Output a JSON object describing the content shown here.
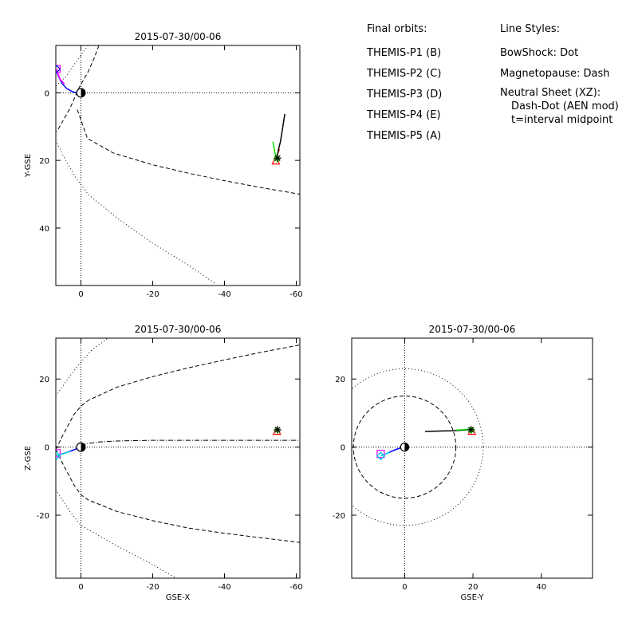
{
  "legend": {
    "orbits_heading": "Final orbits:",
    "orbits": [
      {
        "label": "THEMIS-P1 (B)",
        "color": "#ff0000"
      },
      {
        "label": "THEMIS-P2 (C)",
        "color": "#00e000"
      },
      {
        "label": "THEMIS-P3 (D)",
        "color": "#00e0e0"
      },
      {
        "label": "THEMIS-P4 (E)",
        "color": "#0000ff"
      },
      {
        "label": "THEMIS-P5 (A)",
        "color": "#ff00ff"
      }
    ],
    "styles_heading": "Line Styles:",
    "styles": [
      "BowShock: Dot",
      "Magnetopause: Dash",
      "Neutral Sheet (XZ):",
      "Dash-Dot (AEN mod)",
      "t=interval midpoint"
    ]
  },
  "chart_data": [
    {
      "type": "line",
      "title": "2015-07-30/00-06",
      "xlabel": "",
      "ylabel": "Y-GSE",
      "xlim": [
        7,
        -61
      ],
      "ylim": [
        -14,
        57
      ],
      "x_reversed": true,
      "y_reversed": true,
      "xticks": [
        0,
        -20,
        -40,
        -60
      ],
      "yticks": [
        0,
        20,
        40
      ],
      "crosshair": {
        "x": 0,
        "y": 0,
        "style": "dotted"
      },
      "boundaries": [
        {
          "name": "magnetopause",
          "style": "dash",
          "x": [
            -5,
            -3.6,
            -1.9,
            0.5,
            3,
            6.3,
            7
          ],
          "y": [
            -14,
            -10,
            -6,
            -1.6,
            4.5,
            10.7,
            11.5
          ]
        },
        {
          "name": "magnetopause",
          "style": "dash",
          "x": [
            1,
            -1.8,
            -9,
            -20,
            -30,
            -40,
            -50,
            -61
          ],
          "y": [
            5,
            13.5,
            17.8,
            21.3,
            23.8,
            26,
            28,
            30
          ]
        },
        {
          "name": "bowshock",
          "style": "dot",
          "x": [
            -2,
            1.5,
            4,
            7
          ],
          "y": [
            -14,
            -9,
            -5,
            -2
          ]
        },
        {
          "name": "bowshock",
          "style": "dot",
          "x": [
            7,
            5,
            1.5,
            -2,
            -10,
            -20,
            -30,
            -37.5
          ],
          "y": [
            14,
            18.5,
            25,
            30,
            37,
            44.5,
            51,
            56.5
          ]
        }
      ],
      "series": [
        {
          "name": "THEMIS-P4 (E)",
          "color": "#0000ff",
          "x": [
            6.8,
            6.4,
            5.3,
            4,
            2.5,
            1.3,
            0.4
          ],
          "y": [
            -7,
            -5.2,
            -2.8,
            -1.3,
            -0.4,
            0,
            0.1
          ]
        },
        {
          "name": "THEMIS-P5 (A)",
          "color": "#ff00ff",
          "x": [
            6.8,
            6.5,
            5.8,
            4.6
          ],
          "y": [
            -7,
            -5.9,
            -4,
            -2.6
          ]
        },
        {
          "name": "THEMIS-P1 (B)",
          "color": "#ff0000",
          "x": [
            -54.4,
            -54.7,
            -55.3
          ],
          "y": [
            19.8,
            18.3,
            16.7
          ]
        },
        {
          "name": "THEMIS-P2 (C)",
          "color": "#00e000",
          "x": [
            -54.6,
            -54,
            -53.5
          ],
          "y": [
            19.5,
            17.5,
            14.5
          ]
        },
        {
          "name": "orbit-track",
          "color": "#000000",
          "x": [
            -54.6,
            -55,
            -55.6,
            -56.2,
            -56.8
          ],
          "y": [
            19.5,
            17,
            14.4,
            10.4,
            6.3
          ]
        }
      ],
      "markers": [
        {
          "name": "THEMIS-P5 (A)",
          "shape": "square",
          "color": "#ff00ff",
          "x": 6.8,
          "y": -7
        },
        {
          "name": "THEMIS-P4 (E)",
          "shape": "diamond",
          "color": "#0000ff",
          "x": 6.8,
          "y": -7
        },
        {
          "name": "THEMIS-P1 (B)",
          "shape": "triangle",
          "color": "#ff0000",
          "x": -54.3,
          "y": 20
        },
        {
          "name": "THEMIS-P2 (C)",
          "shape": "asterisk",
          "color": "#00e000",
          "x": -54.6,
          "y": 19.5
        },
        {
          "name": "THEMIS-P3 (D)",
          "shape": "asterisk",
          "color": "#000000",
          "x": -54.8,
          "y": 19.3
        }
      ],
      "earth": {
        "x": 0,
        "y": 0,
        "radius": 1.2
      }
    },
    {
      "type": "line",
      "title": "2015-07-30/00-06",
      "xlabel": "GSE-X",
      "ylabel": "Z-GSE",
      "xlim": [
        7,
        -61
      ],
      "ylim": [
        -38.5,
        32
      ],
      "x_reversed": true,
      "xticks": [
        0,
        -20,
        -40,
        -60
      ],
      "yticks": [
        20,
        0,
        -20
      ],
      "crosshair": {
        "x": 0,
        "y": 0,
        "style": "dotted"
      },
      "boundaries": [
        {
          "name": "magnetopause",
          "style": "dash",
          "x": [
            7,
            5,
            2,
            0,
            -2,
            -10,
            -20,
            -30,
            -40,
            -50,
            -61
          ],
          "y": [
            -0.7,
            3.6,
            9.5,
            12,
            13.7,
            17.6,
            20.7,
            23.3,
            25.6,
            27.8,
            30
          ]
        },
        {
          "name": "magnetopause",
          "style": "dash",
          "x": [
            7,
            5,
            2,
            0,
            -2,
            -10,
            -20,
            -30,
            -40,
            -50,
            -61
          ],
          "y": [
            -0.7,
            -5,
            -11,
            -14,
            -15.5,
            -18.9,
            -21.6,
            -23.8,
            -25.3,
            -26.6,
            -28
          ]
        },
        {
          "name": "bowshock",
          "style": "dot",
          "x": [
            7,
            3,
            0,
            -3,
            -7.5
          ],
          "y": [
            15,
            21,
            25,
            28.5,
            32
          ]
        },
        {
          "name": "bowshock",
          "style": "dot",
          "x": [
            7,
            3,
            0,
            -5,
            -10,
            -20,
            -26.5
          ],
          "y": [
            -12.5,
            -19,
            -23,
            -26,
            -29,
            -34.5,
            -38.5
          ]
        },
        {
          "name": "neutral-sheet",
          "style": "dashdot",
          "x": [
            0,
            -2,
            -5,
            -10,
            -20,
            -30,
            -40,
            -50,
            -61
          ],
          "y": [
            0.5,
            1.1,
            1.5,
            1.8,
            2,
            2,
            2,
            2,
            2
          ]
        }
      ],
      "series": [
        {
          "name": "THEMIS-P4 (E)",
          "color": "#0000ff",
          "x": [
            6.8,
            5.5,
            4,
            2.5,
            1,
            0.2
          ],
          "y": [
            -2.5,
            -2.1,
            -1.6,
            -1,
            -0.4,
            0
          ]
        },
        {
          "name": "THEMIS-P3 (D)",
          "color": "#00e0e0",
          "x": [
            6.8,
            5,
            3
          ],
          "y": [
            -2.5,
            -2,
            -1.3
          ]
        }
      ],
      "markers": [
        {
          "name": "THEMIS-P5 (A)",
          "shape": "square",
          "color": "#ff00ff",
          "x": 6.8,
          "y": -1.8
        },
        {
          "name": "THEMIS-P4 (E)",
          "shape": "diamond",
          "color": "#0000ff",
          "x": 6.8,
          "y": -2.5
        },
        {
          "name": "THEMIS-P3 (D)",
          "shape": "diamond",
          "color": "#00e0e0",
          "x": 6.8,
          "y": -2.5
        },
        {
          "name": "THEMIS-P1 (B)",
          "shape": "triangle",
          "color": "#ff0000",
          "x": -54.6,
          "y": 4.8
        },
        {
          "name": "THEMIS-P2 (C)",
          "shape": "asterisk",
          "color": "#00e000",
          "x": -54.7,
          "y": 5
        },
        {
          "name": "THEMIS-P3 (D)",
          "shape": "asterisk",
          "color": "#000000",
          "x": -54.8,
          "y": 5.1
        }
      ],
      "earth": {
        "x": 0,
        "y": 0,
        "radius": 1.2
      }
    },
    {
      "type": "line",
      "title": "2015-07-30/00-06",
      "xlabel": "GSE-Y",
      "ylabel": "",
      "xlim": [
        -15.5,
        55
      ],
      "ylim": [
        -38.5,
        32
      ],
      "xticks": [
        0,
        20,
        40
      ],
      "yticks": [
        20,
        0,
        -20
      ],
      "crosshair": {
        "x": 0,
        "y": 0,
        "style": "dotted"
      },
      "circles": [
        {
          "name": "magnetopause",
          "style": "dash",
          "cx": 0,
          "cy": 0,
          "r": 15
        },
        {
          "name": "bowshock",
          "style": "dot",
          "cx": 0,
          "cy": 0,
          "r": 23
        }
      ],
      "series": [
        {
          "name": "THEMIS-P4 (E)",
          "color": "#0000ff",
          "x": [
            -7,
            -5.5,
            -3.5,
            -2,
            -0.8,
            0
          ],
          "y": [
            -2.6,
            -2,
            -1.1,
            -0.5,
            -0.1,
            0
          ]
        },
        {
          "name": "THEMIS-P3 (D)",
          "color": "#00e0e0",
          "x": [
            -7,
            -6,
            -4.5
          ],
          "y": [
            -2.6,
            -2.2,
            -1.6
          ]
        },
        {
          "name": "orbit-track",
          "color": "#000000",
          "x": [
            6,
            10,
            14,
            17.5,
            19.5
          ],
          "y": [
            4.6,
            4.7,
            4.8,
            5,
            5.2
          ]
        },
        {
          "name": "THEMIS-P2 (C)",
          "color": "#00e000",
          "x": [
            15,
            17,
            19.5
          ],
          "y": [
            5,
            5.1,
            5.3
          ]
        }
      ],
      "markers": [
        {
          "name": "THEMIS-P5 (A)",
          "shape": "square",
          "color": "#ff00ff",
          "x": -7,
          "y": -2
        },
        {
          "name": "THEMIS-P4 (E)",
          "shape": "diamond",
          "color": "#0000ff",
          "x": -7,
          "y": -2.6
        },
        {
          "name": "THEMIS-P3 (D)",
          "shape": "diamond",
          "color": "#00e0e0",
          "x": -7,
          "y": -2.6
        },
        {
          "name": "THEMIS-P1 (B)",
          "shape": "triangle",
          "color": "#ff0000",
          "x": 19.7,
          "y": 4.8
        },
        {
          "name": "THEMIS-P2 (C)",
          "shape": "asterisk",
          "color": "#00e000",
          "x": 19.6,
          "y": 5
        },
        {
          "name": "THEMIS-P3 (D)",
          "shape": "asterisk",
          "color": "#000000",
          "x": 19.4,
          "y": 5.1
        }
      ],
      "earth": {
        "x": 0,
        "y": 0,
        "radius": 1.2
      }
    }
  ]
}
